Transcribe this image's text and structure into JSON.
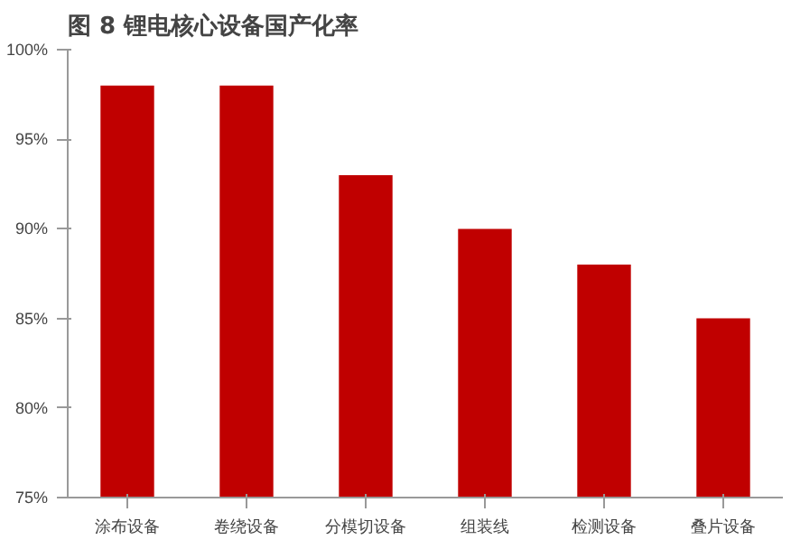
{
  "chart_data": {
    "type": "bar",
    "title": "图 8  锂电核心设备国产化率",
    "categories": [
      "涂布设备",
      "卷绕设备",
      "分模切设备",
      "组装线",
      "检测设备",
      "叠片设备"
    ],
    "values": [
      98,
      98,
      93,
      90,
      88,
      85
    ],
    "color": "#c00000",
    "ylim": [
      75,
      100
    ],
    "yticks": [
      {
        "value": 75,
        "label": "75%"
      },
      {
        "value": 80,
        "label": "80%"
      },
      {
        "value": 85,
        "label": "85%"
      },
      {
        "value": 90,
        "label": "90%"
      },
      {
        "value": 95,
        "label": "95%"
      },
      {
        "value": 100,
        "label": "100%"
      }
    ],
    "grid": false
  }
}
